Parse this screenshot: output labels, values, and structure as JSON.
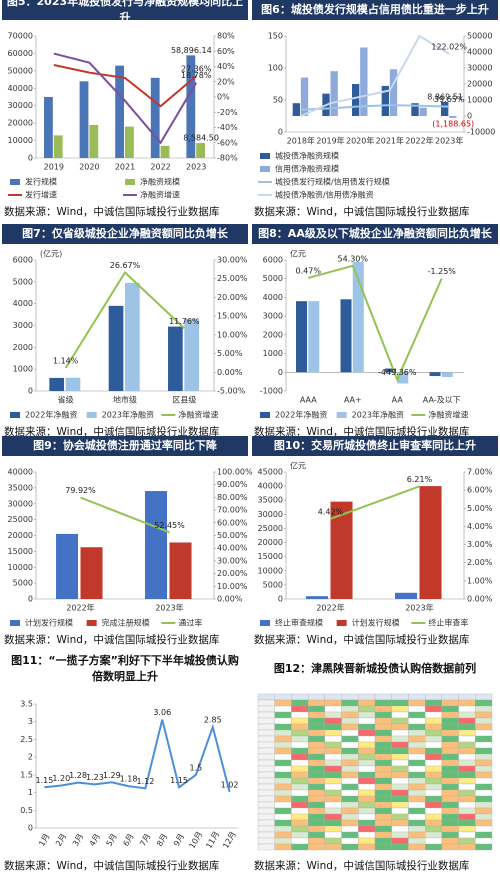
{
  "chart_data": [
    {
      "type": "combo",
      "title": "图5：2023年城投债发行与净融资规模均同比上升",
      "categories": [
        "2019",
        "2020",
        "2021",
        "2022",
        "2023"
      ],
      "series": [
        {
          "name": "发行规模",
          "type": "bar",
          "color": "#4a76b8",
          "values": [
            35000,
            44000,
            53000,
            46000,
            58896.14
          ],
          "value_labels": [
            null,
            null,
            null,
            null,
            "58,896.14"
          ]
        },
        {
          "name": "净融资规模",
          "type": "bar",
          "color": "#9bbb59",
          "values": [
            13000,
            19000,
            18000,
            7000,
            8584.5
          ],
          "value_labels": [
            null,
            null,
            null,
            null,
            "8,584.50"
          ]
        },
        {
          "name": "发行增速",
          "type": "line",
          "axis": "y2",
          "color": "#c0392b",
          "values": [
            42,
            32,
            25,
            -12,
            27.36
          ],
          "value_labels": [
            null,
            null,
            null,
            null,
            "27.36%"
          ]
        },
        {
          "name": "净融资增速",
          "type": "line",
          "axis": "y2",
          "color": "#7b4fa0",
          "values": [
            57,
            45,
            -5,
            -60,
            18.78
          ],
          "value_labels": [
            null,
            null,
            null,
            null,
            "18.78%"
          ]
        }
      ],
      "ylim": [
        0,
        70000
      ],
      "yticks": [
        0,
        10000,
        20000,
        30000,
        40000,
        50000,
        60000,
        70000
      ],
      "y2lim": [
        -80,
        80
      ],
      "y2ticks": [
        {
          "value": -80,
          "label": "-80%"
        },
        {
          "value": -60,
          "label": "-60%"
        },
        {
          "value": -40,
          "label": "-40%"
        },
        {
          "value": -20,
          "label": "-20%"
        },
        {
          "value": 0,
          "label": "0%"
        },
        {
          "value": 20,
          "label": "20%"
        },
        {
          "value": 40,
          "label": "40%"
        },
        {
          "value": 60,
          "label": "60%"
        },
        {
          "value": 80,
          "label": "80%"
        }
      ],
      "source": "数据来源：Wind，中诚信国际城投行业数据库"
    },
    {
      "type": "combo",
      "title": "图6：城投债发行规模占信用债比重进一步上升",
      "categories": [
        "2018年",
        "2019年",
        "2020年",
        "2021年",
        "2022年",
        "2023年"
      ],
      "series": [
        {
          "name": "城投债净融资规模",
          "type": "bar",
          "axis": "y2",
          "color": "#2e5c9a",
          "values": [
            8000,
            14000,
            20000,
            18800,
            8000,
            8869.51
          ],
          "value_labels": [
            null,
            null,
            null,
            null,
            null,
            "8,869.51"
          ]
        },
        {
          "name": "信用债净融资规模",
          "type": "bar",
          "axis": "y2",
          "color": "#8eaadb",
          "values": [
            24000,
            28000,
            42800,
            29200,
            5200,
            -1188.65
          ],
          "value_labels": [
            null,
            null,
            null,
            null,
            null,
            "(1,188.65)"
          ]
        },
        {
          "name": "城投债发行规模/信用债发行规模",
          "type": "line",
          "color": "#9dc3e6",
          "values": [
            35,
            37,
            40,
            42,
            41,
            39.65
          ],
          "value_labels": [
            null,
            null,
            null,
            null,
            null,
            "39.65%"
          ]
        },
        {
          "name": "城投债净融资/信用债净融资",
          "type": "line",
          "color": "#c9d7ee",
          "values": [
            25,
            45,
            55,
            65,
            150,
            122.02
          ],
          "value_labels": [
            null,
            null,
            null,
            null,
            null,
            "122.02%"
          ]
        }
      ],
      "ylim": [
        0,
        150
      ],
      "yticks": [
        0,
        50,
        100,
        150
      ],
      "y2lim": [
        -10000,
        50000
      ],
      "y2ticks": [
        -10000,
        0,
        10000,
        20000,
        30000,
        40000,
        50000
      ],
      "source": "数据来源：Wind，中诚信国际城投行业数据库"
    },
    {
      "type": "combo",
      "title": "图7：仅省级城投企业净融资额同比负增长",
      "y_label": "(亿元)",
      "categories": [
        "省级",
        "地市级",
        "区县级"
      ],
      "series": [
        {
          "name": "2022年净融资",
          "type": "bar",
          "color": "#2e5c9a",
          "values": [
            600,
            3900,
            2950
          ]
        },
        {
          "name": "2023年净融资",
          "type": "bar",
          "color": "#9dc3e6",
          "values": [
            610,
            4950,
            3300
          ]
        },
        {
          "name": "净融资增速",
          "type": "line",
          "axis": "y2",
          "color": "#92c353",
          "values": [
            1.14,
            26.67,
            11.76
          ],
          "value_labels": [
            "1.14%",
            "26.67%",
            "11.76%"
          ]
        }
      ],
      "ylim": [
        0,
        6000
      ],
      "yticks": [
        0,
        1000,
        2000,
        3000,
        4000,
        5000,
        6000
      ],
      "y2lim": [
        -5,
        30
      ],
      "y2ticks": [
        {
          "value": -5,
          "label": "-5.00%"
        },
        {
          "value": 0,
          "label": "0.00%"
        },
        {
          "value": 5,
          "label": "5.00%"
        },
        {
          "value": 10,
          "label": "10.00%"
        },
        {
          "value": 15,
          "label": "15.00%"
        },
        {
          "value": 20,
          "label": "20.00%"
        },
        {
          "value": 25,
          "label": "25.00%"
        },
        {
          "value": 30,
          "label": "30.00%"
        }
      ],
      "source": "数据来源：Wind，中诚信国际城投行业数据库"
    },
    {
      "type": "combo",
      "title": "图8：AA级及以下城投企业净融资额同比负增长",
      "y_label": "亿元",
      "categories": [
        "AAA",
        "AA+",
        "AA",
        "AA-及以下"
      ],
      "series": [
        {
          "name": "2022年净融资",
          "type": "bar",
          "color": "#2e5c9a",
          "values": [
            3800,
            3900,
            200,
            -200
          ]
        },
        {
          "name": "2023年净融资",
          "type": "bar",
          "color": "#9dc3e6",
          "values": [
            3800,
            5900,
            -600,
            -250
          ]
        },
        {
          "name": "净融资增速",
          "type": "line",
          "axis": "y2",
          "color": "#92c353",
          "values": [
            0.47,
            54.3,
            -449.36,
            -1.25
          ],
          "value_labels": [
            "0.47%",
            "54.30%",
            "-449.36%",
            "-1.25%"
          ]
        }
      ],
      "ylim": [
        -1000,
        6000
      ],
      "yticks": [
        -1000,
        0,
        1000,
        2000,
        3000,
        4000,
        5000,
        6000
      ],
      "y2lim": [
        -500,
        80
      ],
      "source": "数据来源：Wind，中诚信国际城投行业数据库"
    },
    {
      "type": "combo",
      "title": "图9：协会城投债注册通过率同比下降",
      "categories": [
        "2022年",
        "2023年"
      ],
      "series": [
        {
          "name": "计划发行规模",
          "type": "bar",
          "color": "#4472c4",
          "values": [
            20500,
            34000
          ]
        },
        {
          "name": "完成注册规模",
          "type": "bar",
          "color": "#c0392b",
          "values": [
            16300,
            17800
          ]
        },
        {
          "name": "通过率",
          "type": "line",
          "axis": "y2",
          "color": "#92c353",
          "values": [
            79.92,
            52.45
          ],
          "value_labels": [
            "79.92%",
            "52.45%"
          ]
        }
      ],
      "ylim": [
        0,
        40000
      ],
      "yticks": [
        0,
        5000,
        10000,
        15000,
        20000,
        25000,
        30000,
        35000,
        40000
      ],
      "y2lim": [
        0,
        100
      ],
      "y2ticks": [
        {
          "value": 0,
          "label": "0.00%"
        },
        {
          "value": 10,
          "label": "10.00%"
        },
        {
          "value": 20,
          "label": "20.00%"
        },
        {
          "value": 30,
          "label": "30.00%"
        },
        {
          "value": 40,
          "label": "40.00%"
        },
        {
          "value": 50,
          "label": "50.00%"
        },
        {
          "value": 60,
          "label": "60.00%"
        },
        {
          "value": 70,
          "label": "70.00%"
        },
        {
          "value": 80,
          "label": "80.00%"
        },
        {
          "value": 90,
          "label": "90.00%"
        },
        {
          "value": 100,
          "label": "100.00%"
        }
      ],
      "source": "数据来源：Wind，中诚信国际城投行业数据库"
    },
    {
      "type": "combo",
      "title": "图10：交易所城投债终止审查率同比上升",
      "y_label": "亿元",
      "categories": [
        "2022年",
        "2023年"
      ],
      "series": [
        {
          "name": "终止审查规模",
          "type": "bar",
          "color": "#4472c4",
          "values": [
            1000,
            2200
          ]
        },
        {
          "name": "计划发行规模",
          "type": "bar",
          "color": "#c0392b",
          "values": [
            34500,
            40000
          ]
        },
        {
          "name": "终止审查率",
          "type": "line",
          "axis": "y2",
          "color": "#92c353",
          "values": [
            4.42,
            6.21
          ],
          "value_labels": [
            "4.42%",
            "6.21%"
          ]
        }
      ],
      "ylim": [
        0,
        45000
      ],
      "yticks": [
        0,
        5000,
        10000,
        15000,
        20000,
        25000,
        30000,
        35000,
        40000,
        45000
      ],
      "y2lim": [
        0,
        7
      ],
      "y2ticks": [
        {
          "value": 0,
          "label": "0.00%"
        },
        {
          "value": 1,
          "label": "1.00%"
        },
        {
          "value": 2,
          "label": "2.00%"
        },
        {
          "value": 3,
          "label": "3.00%"
        },
        {
          "value": 4,
          "label": "4.00%"
        },
        {
          "value": 5,
          "label": "5.00%"
        },
        {
          "value": 6,
          "label": "6.00%"
        },
        {
          "value": 7,
          "label": "7.00%"
        }
      ],
      "source": "数据来源：Wind，中诚信国际城投行业数据库"
    },
    {
      "type": "line",
      "title": "图11：“一揽子方案”利好下下半年城投债认购倍数明显上升",
      "categories": [
        "1月",
        "2月",
        "3月",
        "4月",
        "5月",
        "6月",
        "7月",
        "8月",
        "9月",
        "10月",
        "11月",
        "12月"
      ],
      "values": [
        1.15,
        1.2,
        1.28,
        1.23,
        1.29,
        1.18,
        1.12,
        3.06,
        1.15,
        1.5,
        2.85,
        1.02
      ],
      "value_labels": [
        "1.15",
        "1.20",
        "1.28",
        "1.23",
        "1.29",
        "1.18",
        "1.12",
        "3.06",
        "1.15",
        "1.5",
        "2.85",
        "1.02"
      ],
      "color": "#4a90d9",
      "ylim": [
        0,
        3.5
      ],
      "yticks": [
        0,
        0.5,
        1,
        1.5,
        2,
        2.5,
        3,
        3.5
      ],
      "source": "数据来源：Wind，中诚信国际城投行业数据库"
    },
    {
      "type": "heatmap",
      "title": "图12：津黑陕晋新城投债认购倍数据前列",
      "source": "数据来源：Wind，中诚信国际城投行业数据库"
    }
  ]
}
